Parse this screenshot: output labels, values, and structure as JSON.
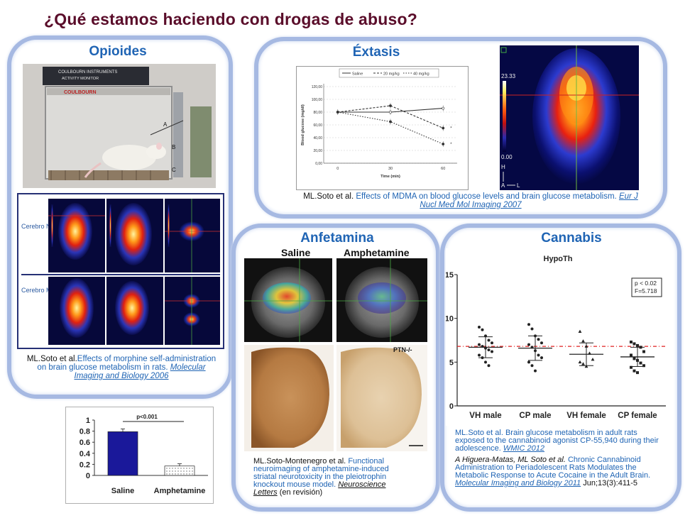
{
  "title": "¿Qué estamos haciendo con drogas de abuso?",
  "opioides": {
    "title": "Opioides",
    "device_label_1": "COULBOURN INSTRUMENTS",
    "device_label_2": "ACTIVITY MONITOR",
    "device_brand": "COULBOURN",
    "label_a": "A",
    "label_b": "B",
    "label_c": "C",
    "row1_label": "Cerebro Normal",
    "row2_label": "Cerebro Morfina",
    "cite_author": "ML.Soto et al.",
    "cite_text": "Effects of morphine self-administration on brain glucose metabolism in rats.",
    "cite_journal": "Molecular Imaging and Biology 2006"
  },
  "extasis": {
    "title": "Éxtasis",
    "cite_author": "ML.Soto et al.",
    "cite_text": "Effects of MDMA on blood glucose levels and brain glucose metabolism.",
    "cite_journal": "Eur J Nucl Med Mol Imaging 2007",
    "scale_max": "23.33",
    "scale_min": "0.00",
    "orient_h": "H",
    "orient_a": "A",
    "orient_l": "L"
  },
  "anfetamina": {
    "title": "Anfetamina",
    "img_label_left": "Saline",
    "img_label_right": "Amphetamine",
    "ptn_label": "PTN-/-",
    "cite_author": "ML.Soto-Montenegro et al.",
    "cite_text": "Functional neuroimaging of amphetamine-induced striatal neurotoxicity in the pleiotrophin knockout mouse model.",
    "cite_journal": "Neuroscience Letters",
    "cite_status": "(en revisión)"
  },
  "cannabis": {
    "title": "Cannabis",
    "cite1_author": "ML.Soto et al.",
    "cite1_text": "Brain glucose metabolism in adult rats exposed to the cannabinoid agonist CP-55,940 during their adolescence.",
    "cite1_journal": "WMIC 2012",
    "cite2_author": "A Higuera-Matas, ML Soto et al.",
    "cite2_text": "Chronic Cannabinoid Administration to Periadolescent Rats Modulates the Metabolic Response to Acute Cocaine in the Adult Brain.",
    "cite2_journal": "Molecular Imaging and Biology 2011",
    "cite2_ref": "Jun;13(3):411-5"
  },
  "chart_data": [
    {
      "type": "line",
      "series": [
        {
          "name": "Saline",
          "values": [
            80,
            80,
            86
          ]
        },
        {
          "name": "20 mg/kg",
          "values": [
            80,
            90,
            55
          ]
        },
        {
          "name": "40 mg/kg",
          "values": [
            80,
            65,
            30
          ]
        }
      ],
      "x": [
        0,
        30,
        60
      ],
      "xlabel": "Time (min)",
      "ylabel": "Blood glucose (mg/dl)",
      "ylim": [
        0,
        120
      ],
      "yticks": [
        "0,00",
        "20,00",
        "40,00",
        "60,00",
        "80,00",
        "100,00",
        "120,00"
      ],
      "annotations": [
        "*",
        "*"
      ],
      "grid": true,
      "legend": "top"
    },
    {
      "type": "scatter",
      "title": "HypoTh",
      "categories": [
        "VH male",
        "CP male",
        "VH female",
        "CP female"
      ],
      "means": [
        6.7,
        6.6,
        5.9,
        5.6
      ],
      "sd": [
        1.2,
        1.4,
        1.3,
        1.1
      ],
      "reference_line": 6.8,
      "points": [
        [
          9.0,
          8.7,
          8.0,
          7.5,
          7.2,
          7.0,
          6.8,
          6.6,
          6.4,
          6.2,
          5.8,
          5.5,
          5.0,
          4.6
        ],
        [
          9.3,
          8.8,
          8.0,
          7.6,
          7.2,
          7.0,
          6.7,
          6.3,
          5.8,
          5.5,
          5.0,
          4.6,
          4.0
        ],
        [
          8.5,
          7.4,
          6.8,
          6.0,
          5.3,
          5.0,
          4.8,
          4.5
        ],
        [
          7.3,
          7.1,
          6.9,
          6.7,
          6.2,
          5.8,
          5.4,
          5.2,
          4.9,
          4.6,
          4.4,
          4.0,
          3.8
        ]
      ],
      "ylim": [
        0,
        15
      ],
      "yticks": [
        "0",
        "5",
        "10",
        "15"
      ],
      "stats_line1": "p < 0.02",
      "stats_line2": "F=5.718"
    },
    {
      "type": "bar",
      "categories": [
        "Saline",
        "Amphetamine"
      ],
      "values": [
        0.79,
        0.17
      ],
      "errors": [
        0.05,
        0.04
      ],
      "ylim": [
        0,
        1
      ],
      "yticks": [
        "0",
        "0.2",
        "0.4",
        "0.6",
        "0.8",
        "1"
      ],
      "annotation": "p<0.001"
    }
  ]
}
